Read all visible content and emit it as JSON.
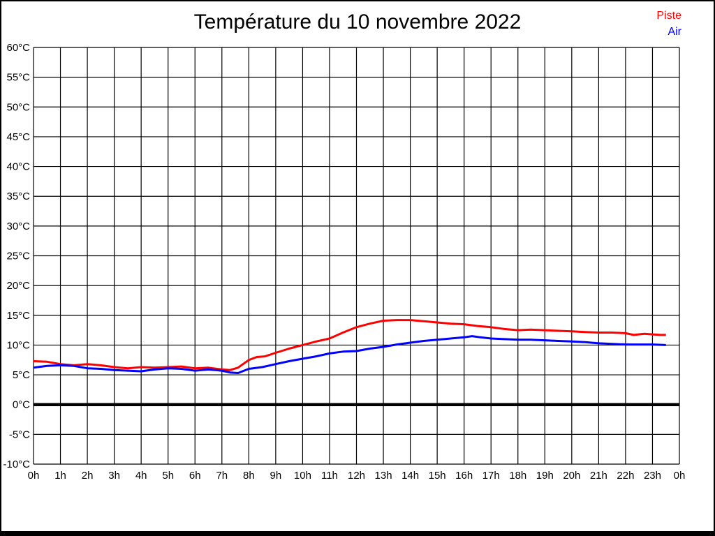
{
  "title": "Température du 10 novembre 2022",
  "legend": [
    {
      "label": "Piste",
      "color": "#ff0000"
    },
    {
      "label": "Air",
      "color": "#0000ff"
    }
  ],
  "chart_data": {
    "type": "line",
    "title": "Température du 10 novembre 2022",
    "xlabel": "",
    "ylabel": "",
    "grid": true,
    "legend_position": "top-right",
    "x_axis": {
      "min": 0,
      "max": 24,
      "tick_values": [
        0,
        1,
        2,
        3,
        4,
        5,
        6,
        7,
        8,
        9,
        10,
        11,
        12,
        13,
        14,
        15,
        16,
        17,
        18,
        19,
        20,
        21,
        22,
        23,
        24
      ],
      "tick_labels": [
        "0h",
        "1h",
        "2h",
        "3h",
        "4h",
        "5h",
        "6h",
        "7h",
        "8h",
        "9h",
        "10h",
        "11h",
        "12h",
        "13h",
        "14h",
        "15h",
        "16h",
        "17h",
        "18h",
        "19h",
        "20h",
        "21h",
        "22h",
        "23h",
        "0h"
      ]
    },
    "y_axis": {
      "min": -10,
      "max": 60,
      "step": 5,
      "tick_values": [
        60,
        55,
        50,
        45,
        40,
        35,
        30,
        25,
        20,
        15,
        10,
        5,
        0,
        -5,
        -10
      ],
      "tick_labels": [
        "60°C",
        "55°C",
        "50°C",
        "45°C",
        "40°C",
        "35°C",
        "30°C",
        "25°C",
        "20°C",
        "15°C",
        "10°C",
        "5°C",
        "0°C",
        "-5°C",
        "-10°C"
      ],
      "zero_line_emphasized": true
    },
    "series": [
      {
        "name": "Piste",
        "color": "#ff0000",
        "points": [
          [
            0,
            7.3
          ],
          [
            0.5,
            7.2
          ],
          [
            1,
            6.8
          ],
          [
            1.5,
            6.6
          ],
          [
            2,
            6.8
          ],
          [
            2.5,
            6.6
          ],
          [
            3,
            6.3
          ],
          [
            3.5,
            6.1
          ],
          [
            4,
            6.3
          ],
          [
            4.5,
            6.2
          ],
          [
            5,
            6.3
          ],
          [
            5.5,
            6.4
          ],
          [
            6,
            6.1
          ],
          [
            6.5,
            6.2
          ],
          [
            7,
            5.9
          ],
          [
            7.3,
            5.8
          ],
          [
            7.6,
            6.2
          ],
          [
            8,
            7.5
          ],
          [
            8.3,
            8.0
          ],
          [
            8.6,
            8.1
          ],
          [
            9,
            8.7
          ],
          [
            9.5,
            9.4
          ],
          [
            10,
            10.0
          ],
          [
            10.5,
            10.6
          ],
          [
            11,
            11.1
          ],
          [
            11.5,
            12.1
          ],
          [
            12,
            13.0
          ],
          [
            12.5,
            13.6
          ],
          [
            13,
            14.1
          ],
          [
            13.5,
            14.2
          ],
          [
            14,
            14.2
          ],
          [
            14.5,
            14.0
          ],
          [
            15,
            13.8
          ],
          [
            15.5,
            13.6
          ],
          [
            16,
            13.5
          ],
          [
            16.5,
            13.2
          ],
          [
            17,
            13.0
          ],
          [
            17.5,
            12.7
          ],
          [
            18,
            12.5
          ],
          [
            18.5,
            12.6
          ],
          [
            19,
            12.5
          ],
          [
            19.5,
            12.4
          ],
          [
            20,
            12.3
          ],
          [
            20.5,
            12.2
          ],
          [
            21,
            12.1
          ],
          [
            21.5,
            12.1
          ],
          [
            22,
            12.0
          ],
          [
            22.3,
            11.7
          ],
          [
            22.7,
            11.9
          ],
          [
            23,
            11.8
          ],
          [
            23.3,
            11.7
          ],
          [
            23.5,
            11.7
          ]
        ]
      },
      {
        "name": "Air",
        "color": "#0000ff",
        "points": [
          [
            0,
            6.2
          ],
          [
            0.5,
            6.5
          ],
          [
            1,
            6.6
          ],
          [
            1.5,
            6.5
          ],
          [
            2,
            6.1
          ],
          [
            2.5,
            6.0
          ],
          [
            3,
            5.8
          ],
          [
            3.5,
            5.7
          ],
          [
            4,
            5.6
          ],
          [
            4.5,
            5.9
          ],
          [
            5,
            6.1
          ],
          [
            5.5,
            6.0
          ],
          [
            6,
            5.7
          ],
          [
            6.5,
            5.9
          ],
          [
            7,
            5.7
          ],
          [
            7.3,
            5.4
          ],
          [
            7.6,
            5.3
          ],
          [
            8,
            6.0
          ],
          [
            8.5,
            6.3
          ],
          [
            9,
            6.8
          ],
          [
            9.5,
            7.3
          ],
          [
            10,
            7.7
          ],
          [
            10.5,
            8.1
          ],
          [
            11,
            8.6
          ],
          [
            11.5,
            8.9
          ],
          [
            12,
            9.0
          ],
          [
            12.5,
            9.4
          ],
          [
            13,
            9.7
          ],
          [
            13.5,
            10.1
          ],
          [
            14,
            10.4
          ],
          [
            14.5,
            10.7
          ],
          [
            15,
            10.9
          ],
          [
            15.5,
            11.1
          ],
          [
            16,
            11.3
          ],
          [
            16.3,
            11.5
          ],
          [
            16.6,
            11.3
          ],
          [
            17,
            11.1
          ],
          [
            17.5,
            11.0
          ],
          [
            18,
            10.9
          ],
          [
            18.5,
            10.9
          ],
          [
            19,
            10.8
          ],
          [
            19.5,
            10.7
          ],
          [
            20,
            10.6
          ],
          [
            20.5,
            10.5
          ],
          [
            21,
            10.3
          ],
          [
            21.5,
            10.2
          ],
          [
            22,
            10.1
          ],
          [
            22.5,
            10.1
          ],
          [
            23,
            10.1
          ],
          [
            23.5,
            10.0
          ]
        ]
      }
    ]
  }
}
